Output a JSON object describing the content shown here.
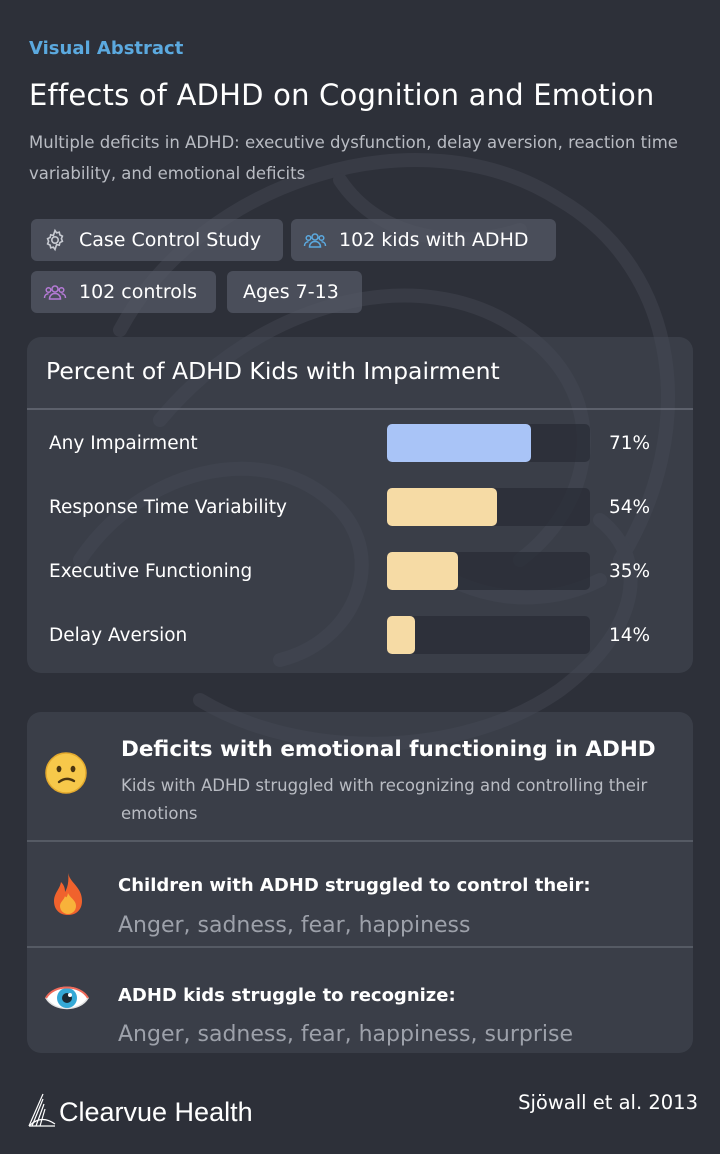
{
  "eyebrow": "Visual Abstract",
  "title": "Effects of ADHD on Cognition and Emotion",
  "subtitle": "Multiple deficits in ADHD: executive dysfunction, delay aversion, reaction time variability, and emotional deficits",
  "chips": [
    {
      "label": "Case Control Study",
      "icon": "gear-icon"
    },
    {
      "label": "102 kids with ADHD",
      "icon": "people-icon"
    },
    {
      "label": "102 controls",
      "icon": "people-icon"
    },
    {
      "label": "Ages 7-13"
    }
  ],
  "impairment_card": {
    "title": "Percent of ADHD Kids with Impairment"
  },
  "chart_data": {
    "type": "bar",
    "orientation": "horizontal",
    "title": "Percent of ADHD Kids with Impairment",
    "categories": [
      "Any Impairment",
      "Response Time Variability",
      "Executive Functioning",
      "Delay Aversion"
    ],
    "values": [
      71,
      54,
      35,
      14
    ],
    "value_labels": [
      "71%",
      "54%",
      "35%",
      "14%"
    ],
    "xlim": [
      0,
      100
    ],
    "colors": [
      "#a9c4f7",
      "#f6dba5",
      "#f6dba5",
      "#f6dba5"
    ],
    "grid": false
  },
  "emotion_card": {
    "header": {
      "icon": "confused-face-icon",
      "title": "Deficits with emotional functioning in ADHD",
      "subtitle": "Kids with ADHD struggled with recognizing and controlling their emotions"
    },
    "items": [
      {
        "icon": "fire-icon",
        "title": "Children with ADHD struggled to control their:",
        "text": "Anger, sadness, fear, happiness"
      },
      {
        "icon": "eye-icon",
        "title": "ADHD kids struggle to recognize:",
        "text": "Anger, sadness, fear, happiness, surprise"
      }
    ]
  },
  "footer": {
    "brand": "Clearvue Health",
    "citation": "Sjöwall et al. 2013"
  },
  "colors": {
    "background": "#2d3039",
    "accent": "#5ba9df",
    "bar_primary": "#a9c4f7",
    "bar_secondary": "#f6dba5"
  }
}
